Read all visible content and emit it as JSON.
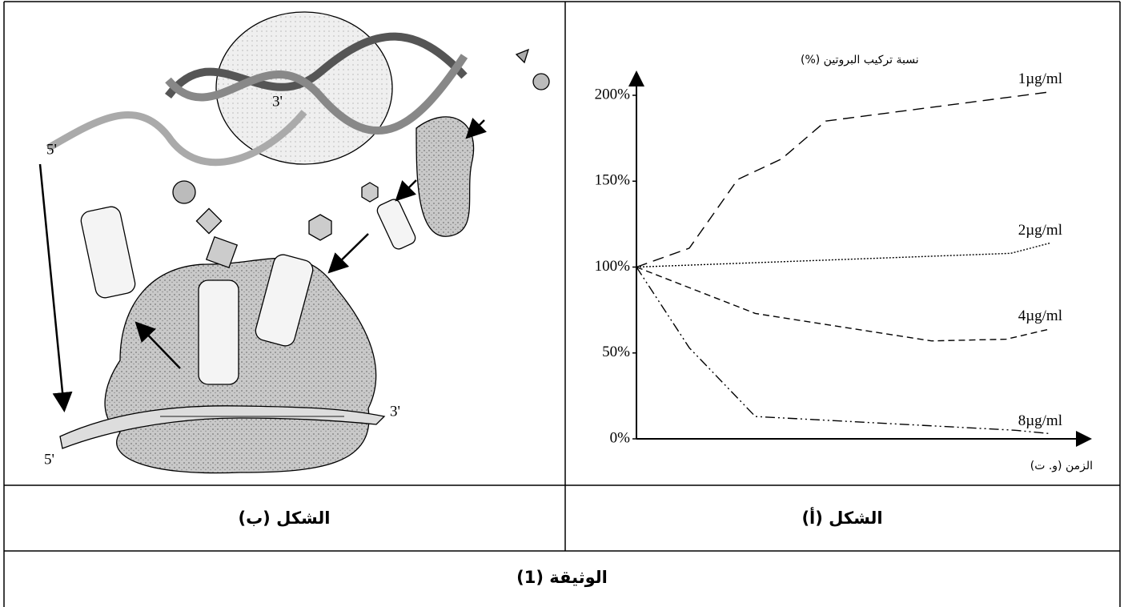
{
  "document": {
    "caption_a": "الشكل (أ)",
    "caption_b": "الشكل (ب)",
    "title": "الوثيقة (1)",
    "figure_b_labels": [
      "3'",
      "5'",
      "5'",
      "3'"
    ]
  },
  "chart_data": {
    "type": "line",
    "ylabel": "نسبة تركيب البروتين (%)",
    "xlabel": "الزمن (و. ت)",
    "xlim": [
      0,
      10
    ],
    "ylim": [
      0,
      200
    ],
    "yticks": [
      {
        "value": 0,
        "label": "0%"
      },
      {
        "value": 50,
        "label": "50%"
      },
      {
        "value": 100,
        "label": "100%"
      },
      {
        "value": 150,
        "label": "150%"
      },
      {
        "value": 200,
        "label": "200%"
      }
    ],
    "series": [
      {
        "name": "1µg/ml",
        "color": "#000000",
        "style": "long-dash",
        "x": [
          0,
          1.2,
          2.3,
          3.3,
          4.3,
          9.4
        ],
        "values": [
          100,
          111,
          151,
          163,
          185,
          202
        ]
      },
      {
        "name": "2µg/ml",
        "color": "#000000",
        "style": "dotted",
        "x": [
          0,
          8.5,
          9.4
        ],
        "values": [
          100,
          108,
          114
        ]
      },
      {
        "name": "4µg/ml",
        "color": "#000000",
        "style": "short-dash",
        "x": [
          0,
          1.4,
          2.7,
          6.7,
          8.4,
          9.4
        ],
        "values": [
          100,
          86,
          73,
          57,
          58,
          64
        ]
      },
      {
        "name": "8µg/ml",
        "color": "#000000",
        "style": "dash-dot-dot",
        "x": [
          0,
          1.2,
          2.7,
          8.6,
          9.4
        ],
        "values": [
          100,
          53,
          13,
          5,
          3
        ]
      }
    ]
  }
}
